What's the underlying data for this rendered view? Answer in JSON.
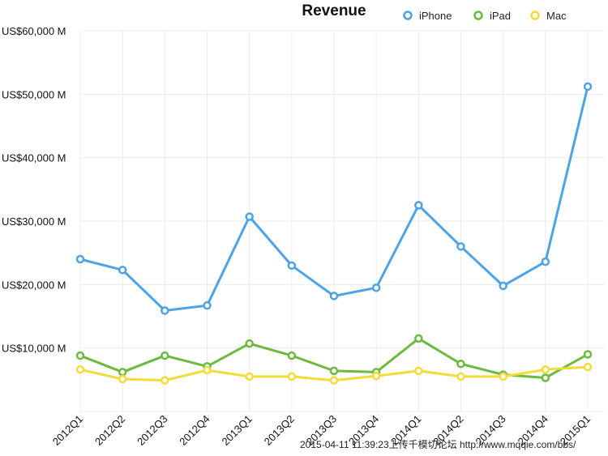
{
  "chart_data": {
    "type": "line",
    "title": "Revenue",
    "categories": [
      "2012Q1",
      "2012Q2",
      "2012Q3",
      "2012Q4",
      "2013Q1",
      "2013Q2",
      "2013Q3",
      "2013Q4",
      "2014Q1",
      "2014Q2",
      "2014Q3",
      "2014Q4",
      "2015Q1"
    ],
    "yticks": [
      "US$10,000 M",
      "US$20,000 M",
      "US$30,000 M",
      "US$40,000 M",
      "US$50,000 M",
      "US$60,000 M"
    ],
    "ylim": [
      0,
      60000
    ],
    "grid": true,
    "legend_position": "top-right",
    "series": [
      {
        "name": "iPhone",
        "color": "#4ea3e6",
        "values": [
          24000,
          22300,
          15900,
          16700,
          30700,
          23000,
          18200,
          19500,
          32500,
          26000,
          19800,
          23600,
          51200
        ]
      },
      {
        "name": "iPad",
        "color": "#6cba3e",
        "values": [
          8800,
          6200,
          8800,
          7100,
          10700,
          8800,
          6400,
          6200,
          11500,
          7500,
          5800,
          5300,
          9000
        ]
      },
      {
        "name": "Mac",
        "color": "#f2dc38",
        "values": [
          6600,
          5100,
          4900,
          6500,
          5500,
          5500,
          4900,
          5600,
          6400,
          5500,
          5500,
          6600,
          7000
        ]
      }
    ]
  },
  "watermark": "2015-04-11 11:39:23上传千模切论坛 http://www.mqqie.com/bbs/"
}
